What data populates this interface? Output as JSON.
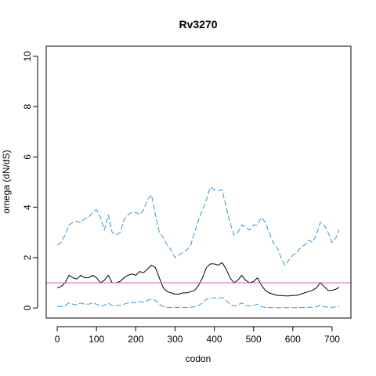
{
  "chart_data": {
    "type": "line",
    "title": "Rv3270",
    "xlabel": "codon",
    "ylabel": "omega (dN/dS)",
    "xlim": [
      -28,
      748
    ],
    "ylim": [
      -0.4,
      10.4
    ],
    "xticks": [
      0,
      100,
      200,
      300,
      400,
      500,
      600,
      700
    ],
    "yticks": [
      0,
      2,
      4,
      6,
      8,
      10
    ],
    "grid": false,
    "reference_line": {
      "y": 1,
      "color": "#cc66cc"
    },
    "series": [
      {
        "role": "upper",
        "style": "dashed",
        "color": "#3399dd",
        "x": [
          0,
          10,
          20,
          30,
          40,
          50,
          60,
          70,
          80,
          90,
          100,
          110,
          120,
          130,
          140,
          150,
          160,
          170,
          180,
          190,
          200,
          210,
          220,
          230,
          240,
          250,
          260,
          270,
          280,
          290,
          300,
          310,
          320,
          330,
          340,
          350,
          360,
          370,
          380,
          390,
          400,
          410,
          420,
          430,
          440,
          450,
          460,
          470,
          480,
          490,
          500,
          510,
          520,
          530,
          540,
          550,
          560,
          570,
          580,
          590,
          600,
          610,
          620,
          630,
          640,
          650,
          660,
          670,
          680,
          690,
          700,
          710,
          718
        ],
        "y": [
          2.5,
          2.6,
          2.9,
          3.3,
          3.4,
          3.45,
          3.4,
          3.55,
          3.6,
          3.8,
          3.9,
          3.6,
          3.1,
          3.7,
          3.0,
          2.9,
          3.0,
          3.5,
          3.7,
          3.8,
          3.8,
          3.7,
          3.9,
          4.3,
          4.5,
          3.7,
          3.0,
          2.8,
          2.5,
          2.3,
          2.0,
          2.1,
          2.2,
          2.3,
          2.5,
          3.0,
          3.5,
          3.9,
          4.3,
          4.8,
          4.7,
          4.65,
          4.7,
          4.0,
          3.4,
          2.9,
          3.0,
          3.3,
          3.2,
          3.1,
          3.3,
          3.3,
          3.6,
          3.4,
          3.0,
          2.6,
          2.4,
          2.0,
          1.7,
          1.9,
          2.1,
          2.2,
          2.4,
          2.5,
          2.7,
          2.6,
          2.9,
          3.4,
          3.3,
          3.0,
          2.6,
          2.8,
          3.1
        ]
      },
      {
        "role": "estimate",
        "style": "solid",
        "color": "#000000",
        "x": [
          0,
          10,
          20,
          30,
          40,
          50,
          60,
          70,
          80,
          90,
          100,
          110,
          120,
          130,
          140,
          150,
          160,
          170,
          180,
          190,
          200,
          210,
          220,
          230,
          240,
          250,
          260,
          270,
          280,
          290,
          300,
          310,
          320,
          330,
          340,
          350,
          360,
          370,
          380,
          390,
          400,
          410,
          420,
          430,
          440,
          450,
          460,
          470,
          480,
          490,
          500,
          510,
          520,
          530,
          540,
          550,
          560,
          570,
          580,
          590,
          600,
          610,
          620,
          630,
          640,
          650,
          660,
          670,
          680,
          690,
          700,
          710,
          718
        ],
        "y": [
          0.8,
          0.85,
          1.0,
          1.3,
          1.2,
          1.15,
          1.3,
          1.2,
          1.2,
          1.3,
          1.2,
          1.0,
          1.1,
          1.3,
          1.0,
          1.0,
          1.05,
          1.2,
          1.3,
          1.35,
          1.3,
          1.45,
          1.4,
          1.55,
          1.7,
          1.6,
          1.2,
          0.8,
          0.65,
          0.6,
          0.55,
          0.55,
          0.6,
          0.6,
          0.65,
          0.7,
          0.9,
          1.2,
          1.6,
          1.75,
          1.75,
          1.7,
          1.8,
          1.55,
          1.2,
          1.0,
          1.1,
          1.3,
          1.1,
          1.0,
          1.05,
          1.2,
          0.9,
          0.7,
          0.6,
          0.55,
          0.5,
          0.5,
          0.48,
          0.48,
          0.5,
          0.5,
          0.55,
          0.6,
          0.65,
          0.7,
          0.8,
          1.0,
          0.85,
          0.7,
          0.7,
          0.75,
          0.82
        ]
      },
      {
        "role": "lower",
        "style": "dashed",
        "color": "#3399dd",
        "x": [
          0,
          10,
          20,
          30,
          40,
          50,
          60,
          70,
          80,
          90,
          100,
          110,
          120,
          130,
          140,
          150,
          160,
          170,
          180,
          190,
          200,
          210,
          220,
          230,
          240,
          250,
          260,
          270,
          280,
          290,
          300,
          310,
          320,
          330,
          340,
          350,
          360,
          370,
          380,
          390,
          400,
          410,
          420,
          430,
          440,
          450,
          460,
          470,
          480,
          490,
          500,
          510,
          520,
          530,
          540,
          550,
          560,
          570,
          580,
          590,
          600,
          610,
          620,
          630,
          640,
          650,
          660,
          670,
          680,
          690,
          700,
          710,
          718
        ],
        "y": [
          0.05,
          0.05,
          0.1,
          0.2,
          0.15,
          0.12,
          0.2,
          0.15,
          0.15,
          0.2,
          0.15,
          0.08,
          0.1,
          0.2,
          0.1,
          0.1,
          0.1,
          0.15,
          0.2,
          0.22,
          0.2,
          0.25,
          0.22,
          0.3,
          0.35,
          0.3,
          0.15,
          0.05,
          0.02,
          0.02,
          0.02,
          0.02,
          0.02,
          0.02,
          0.03,
          0.05,
          0.1,
          0.2,
          0.35,
          0.4,
          0.4,
          0.38,
          0.42,
          0.3,
          0.15,
          0.08,
          0.12,
          0.2,
          0.1,
          0.08,
          0.1,
          0.15,
          0.05,
          0.02,
          0.02,
          0.01,
          0.01,
          0.01,
          0.01,
          0.01,
          0.01,
          0.01,
          0.02,
          0.02,
          0.03,
          0.03,
          0.05,
          0.1,
          0.05,
          0.03,
          0.03,
          0.04,
          0.05
        ]
      }
    ]
  }
}
